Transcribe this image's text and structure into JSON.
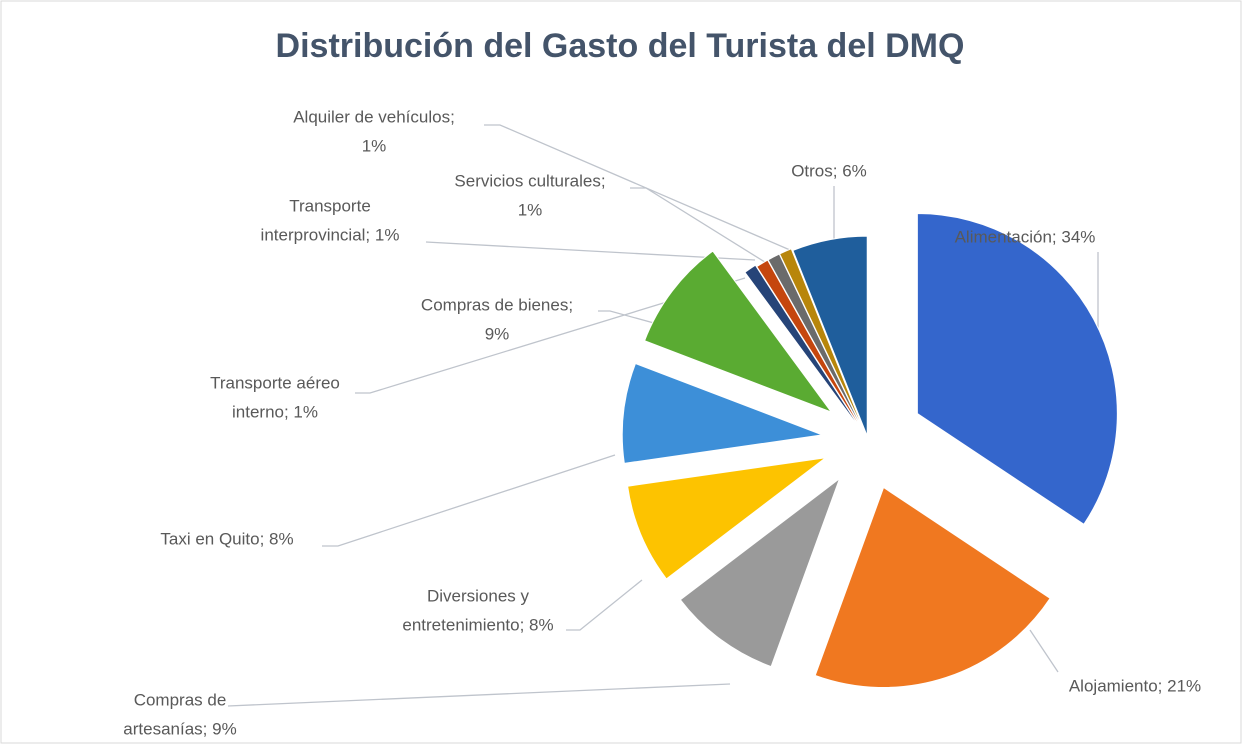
{
  "chart_data": {
    "type": "pie",
    "title": "Distribución del Gasto del Turista del DMQ",
    "labels": [
      [
        "Alimentación; 34%"
      ],
      [
        "Alojamiento; 21%"
      ],
      [
        "Compras de",
        "artesanías; 9%"
      ],
      [
        "Diversiones y",
        "entretenimiento; 8%"
      ],
      [
        "Taxi en Quito; 8%"
      ],
      [
        "Compras de bienes;",
        "9%"
      ],
      [
        "Transporte aéreo",
        "interno; 1%"
      ],
      [
        "Transporte",
        "interprovincial; 1%"
      ],
      [
        "Alquiler de vehículos;",
        "1%"
      ],
      [
        "Servicios culturales;",
        "1%"
      ],
      [
        "Otros; 6%"
      ]
    ],
    "values": [
      34,
      21,
      9,
      8,
      8,
      9,
      1,
      1,
      1,
      1,
      6
    ],
    "colors": [
      "#3466cc",
      "#f07820",
      "#9a9a9a",
      "#fdc300",
      "#3d8fd8",
      "#5aab32",
      "#264478",
      "#c5460e",
      "#6b6b6b",
      "#b8860b",
      "#1f5e9c"
    ]
  }
}
